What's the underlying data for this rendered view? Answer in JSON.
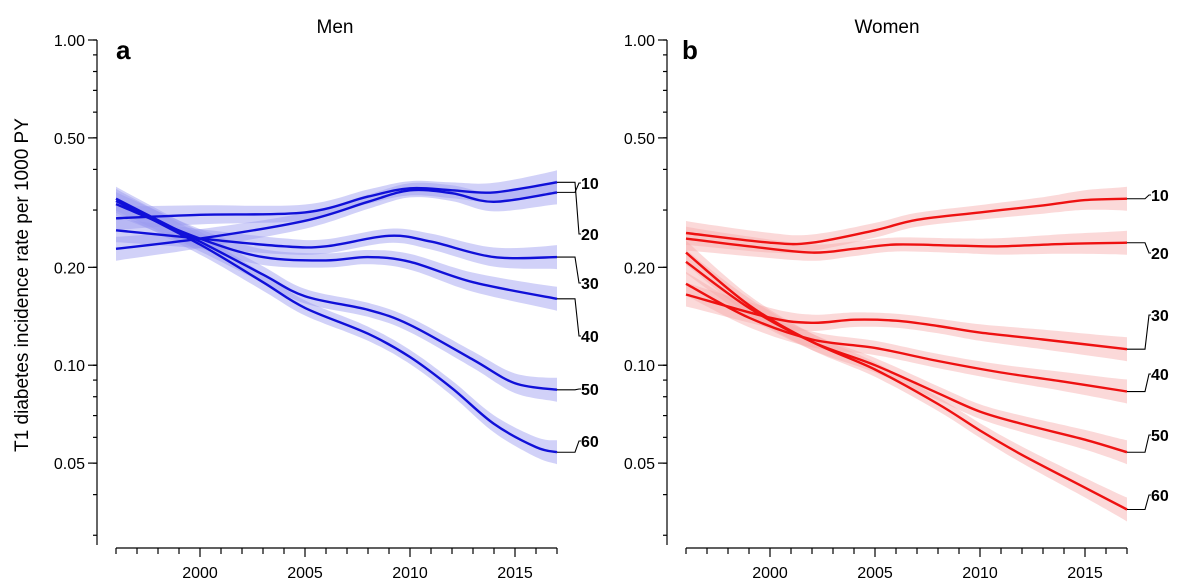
{
  "y_axis_title": "T1 diabetes incidence rate per 1000 PY",
  "chart_data": [
    {
      "type": "line",
      "panel_label": "a",
      "title": "Men",
      "color": "#1010d8",
      "band_color": "#9a9af0",
      "x_ticks": [
        2000,
        2005,
        2010,
        2015
      ],
      "y_scale": "log",
      "y_ticks": [
        "1.00",
        "0.50",
        "0.20",
        "0.10",
        "0.05"
      ],
      "ylim": [
        0.028,
        1.0
      ],
      "xlim": [
        1995.5,
        2017.5
      ],
      "series": [
        {
          "name": "10",
          "x": [
            1996,
            2000,
            2005,
            2008,
            2010,
            2012,
            2014,
            2017
          ],
          "y": [
            0.228,
            0.245,
            0.278,
            0.318,
            0.345,
            0.338,
            0.318,
            0.34
          ]
        },
        {
          "name": "20",
          "x": [
            1996,
            2000,
            2005,
            2008,
            2010,
            2012,
            2014,
            2017
          ],
          "y": [
            0.283,
            0.29,
            0.295,
            0.33,
            0.35,
            0.345,
            0.34,
            0.365
          ]
        },
        {
          "name": "30",
          "x": [
            1996,
            2000,
            2004,
            2006,
            2009,
            2011,
            2014,
            2017
          ],
          "y": [
            0.26,
            0.245,
            0.232,
            0.232,
            0.25,
            0.24,
            0.215,
            0.215
          ]
        },
        {
          "name": "40",
          "x": [
            1996,
            2000,
            2003,
            2006,
            2008,
            2010,
            2013,
            2017
          ],
          "y": [
            0.313,
            0.245,
            0.215,
            0.21,
            0.215,
            0.208,
            0.18,
            0.16
          ]
        },
        {
          "name": "50",
          "x": [
            1996,
            2000,
            2003,
            2005,
            2008,
            2010,
            2013,
            2015,
            2017
          ],
          "y": [
            0.325,
            0.24,
            0.19,
            0.163,
            0.148,
            0.133,
            0.104,
            0.088,
            0.084
          ]
        },
        {
          "name": "60",
          "x": [
            1996,
            2000,
            2003,
            2005,
            2008,
            2010,
            2012,
            2014,
            2016,
            2017
          ],
          "y": [
            0.32,
            0.235,
            0.18,
            0.15,
            0.125,
            0.106,
            0.085,
            0.066,
            0.056,
            0.054
          ]
        }
      ]
    },
    {
      "type": "line",
      "panel_label": "b",
      "title": "Women",
      "color": "#ee1111",
      "band_color": "#f6aaaa",
      "x_ticks": [
        2000,
        2005,
        2010,
        2015
      ],
      "y_scale": "log",
      "y_ticks": [
        "1.00",
        "0.50",
        "0.20",
        "0.10",
        "0.05"
      ],
      "ylim": [
        0.028,
        1.0
      ],
      "xlim": [
        1995.5,
        2017.5
      ],
      "series": [
        {
          "name": "10",
          "x": [
            1996,
            2000,
            2002,
            2005,
            2007,
            2010,
            2013,
            2015,
            2017
          ],
          "y": [
            0.255,
            0.238,
            0.238,
            0.26,
            0.28,
            0.295,
            0.31,
            0.322,
            0.325
          ]
        },
        {
          "name": "20",
          "x": [
            1996,
            1999,
            2002,
            2004,
            2006,
            2009,
            2011,
            2014,
            2017
          ],
          "y": [
            0.245,
            0.232,
            0.222,
            0.228,
            0.235,
            0.233,
            0.232,
            0.236,
            0.238
          ]
        },
        {
          "name": "30",
          "x": [
            1996,
            2000,
            2002,
            2004,
            2006,
            2008,
            2010,
            2013,
            2017
          ],
          "y": [
            0.165,
            0.14,
            0.135,
            0.138,
            0.137,
            0.132,
            0.126,
            0.12,
            0.112
          ]
        },
        {
          "name": "40",
          "x": [
            1996,
            1999,
            2002,
            2005,
            2008,
            2011,
            2014,
            2017
          ],
          "y": [
            0.178,
            0.14,
            0.12,
            0.113,
            0.103,
            0.095,
            0.089,
            0.083
          ]
        },
        {
          "name": "50",
          "x": [
            1996,
            1999,
            2002,
            2005,
            2008,
            2010,
            2012,
            2015,
            2017
          ],
          "y": [
            0.208,
            0.15,
            0.118,
            0.1,
            0.082,
            0.072,
            0.066,
            0.059,
            0.054
          ]
        },
        {
          "name": "60",
          "x": [
            1996,
            1999,
            2002,
            2005,
            2008,
            2010,
            2012,
            2015,
            2017
          ],
          "y": [
            0.222,
            0.153,
            0.118,
            0.097,
            0.076,
            0.063,
            0.053,
            0.042,
            0.036
          ]
        }
      ]
    }
  ]
}
